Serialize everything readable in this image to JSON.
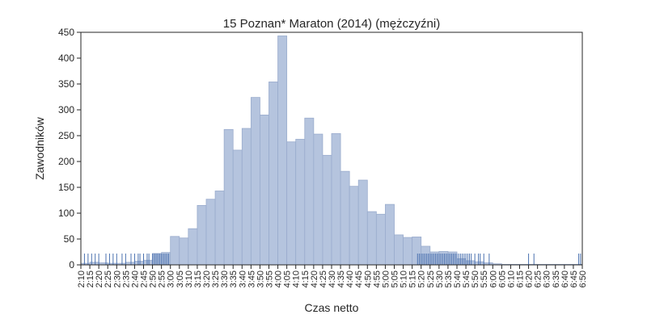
{
  "chart_data": {
    "type": "bar",
    "title": "15 Poznan* Maraton (2014) (mężczyźni)",
    "xlabel": "Czas netto",
    "ylabel": "Zawodników",
    "ylim": [
      0,
      450
    ],
    "y_ticks": [
      "0",
      "50",
      "100",
      "150",
      "200",
      "250",
      "300",
      "350",
      "400",
      "450"
    ],
    "x_ticks": [
      "2:10",
      "2:15",
      "2:20",
      "2:25",
      "2:30",
      "2:35",
      "2:40",
      "2:45",
      "2:50",
      "2:55",
      "3:00",
      "3:05",
      "3:10",
      "3:15",
      "3:20",
      "3:25",
      "3:30",
      "3:35",
      "3:40",
      "3:45",
      "3:50",
      "3:55",
      "4:00",
      "4:05",
      "4:10",
      "4:15",
      "4:20",
      "4:25",
      "4:30",
      "4:35",
      "4:40",
      "4:45",
      "4:50",
      "4:55",
      "5:00",
      "5:05",
      "5:10",
      "5:15",
      "5:20",
      "5:25",
      "5:30",
      "5:35",
      "5:40",
      "5:45",
      "5:50",
      "5:55",
      "6:00",
      "6:05",
      "6:10",
      "6:15",
      "6:20",
      "6:25",
      "6:30",
      "6:35",
      "6:40",
      "6:45",
      "6:50"
    ],
    "bin_minutes": 5,
    "series": [
      {
        "kind": "histogram",
        "bins_start": [
          "2:10",
          "2:15",
          "2:20",
          "2:25",
          "2:30",
          "2:35",
          "2:40",
          "2:45",
          "2:50",
          "2:55",
          "3:00",
          "3:05",
          "3:10",
          "3:15",
          "3:20",
          "3:25",
          "3:30",
          "3:35",
          "3:40",
          "3:45",
          "3:50",
          "3:55",
          "4:00",
          "4:05",
          "4:10",
          "4:15",
          "4:20",
          "4:25",
          "4:30",
          "4:35",
          "4:40",
          "4:45",
          "4:50",
          "4:55",
          "5:00",
          "5:05",
          "5:10",
          "5:15",
          "5:20",
          "5:25",
          "5:30",
          "5:35",
          "5:40",
          "5:45",
          "5:50",
          "5:55",
          "6:00",
          "6:05",
          "6:10",
          "6:15",
          "6:20",
          "6:25",
          "6:30",
          "6:35",
          "6:40",
          "6:45"
        ],
        "values": [
          3,
          5,
          4,
          3,
          3,
          5,
          7,
          9,
          22,
          24,
          55,
          52,
          70,
          115,
          127,
          143,
          262,
          222,
          264,
          324,
          290,
          354,
          443,
          238,
          243,
          284,
          253,
          212,
          254,
          181,
          152,
          164,
          103,
          98,
          117,
          58,
          53,
          54,
          36,
          25,
          26,
          25,
          12,
          8,
          6,
          4,
          2,
          1,
          1,
          1,
          1,
          1,
          1,
          1,
          1,
          1
        ]
      },
      {
        "kind": "rug",
        "ticks_at_minutes": [
          132,
          134,
          136,
          138,
          140,
          144,
          146,
          148,
          150,
          153,
          155,
          158,
          160,
          162,
          163,
          165,
          167,
          168,
          170,
          171,
          172,
          173,
          174,
          175,
          176,
          177,
          178,
          179,
          318,
          319,
          320,
          321,
          322,
          323,
          324,
          325,
          326,
          327,
          328,
          329,
          330,
          331,
          332,
          333,
          334,
          335,
          336,
          337,
          338,
          339,
          340,
          341,
          342,
          343,
          344,
          345,
          346,
          347,
          348,
          350,
          352,
          353,
          355,
          358,
          380,
          383,
          408,
          409
        ]
      }
    ],
    "colors": {
      "bar_fill": "#b5c4de",
      "bar_stroke": "#9aaccd",
      "rug": "#4c72b0",
      "axis": "#262626"
    },
    "grid": false,
    "legend": "none"
  }
}
